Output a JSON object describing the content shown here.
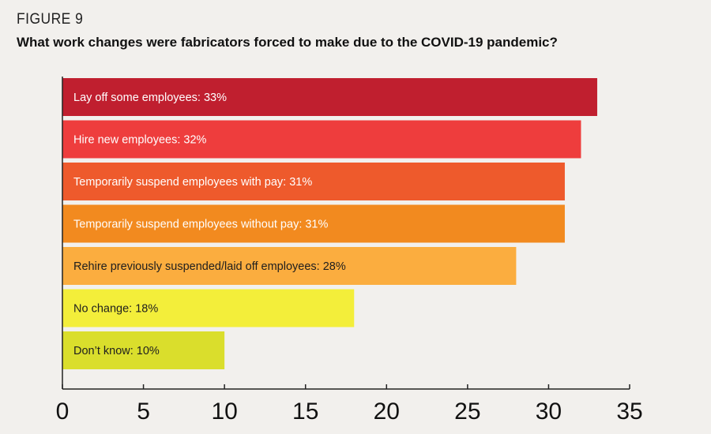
{
  "figure_label": "FIGURE 9",
  "chart_data": {
    "type": "bar",
    "orientation": "horizontal",
    "title": "What work changes were fabricators forced to make due to the COVID-19 pandemic?",
    "categories": [
      "Lay off some employees: 33%",
      "Hire new employees: 32%",
      "Temporarily suspend employees with pay: 31%",
      "Temporarily suspend employees without pay: 31%",
      "Rehire previously suspended/laid off employees: 28%",
      "No change: 18%",
      "Don’t know: 10%"
    ],
    "values": [
      33,
      32,
      31,
      31,
      28,
      18,
      10
    ],
    "colors": [
      "#c01f2f",
      "#ee3d3d",
      "#ee5a2c",
      "#f28a1f",
      "#fbad3f",
      "#f3ee3a",
      "#dade2c"
    ],
    "label_colors": [
      "#ffffff",
      "#ffffff",
      "#ffffff",
      "#ffffff",
      "#1e1e1e",
      "#1e1e1e",
      "#1e1e1e"
    ],
    "xlim": [
      0,
      35
    ],
    "xticks": [
      0,
      5,
      10,
      15,
      20,
      25,
      30,
      35
    ],
    "xlabel": "",
    "ylabel": "",
    "grid": false,
    "legend": "none"
  }
}
